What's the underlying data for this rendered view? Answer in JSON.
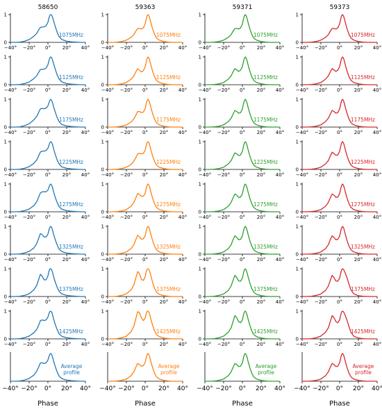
{
  "chart_data": {
    "type": "line",
    "columns": [
      {
        "title": "58650",
        "color": "#1f77b4"
      },
      {
        "title": "59363",
        "color": "#ff7f0e"
      },
      {
        "title": "59371",
        "color": "#2ca02c"
      },
      {
        "title": "59373",
        "color": "#d62728"
      }
    ],
    "frequency_labels": [
      "1075MHz",
      "1125MHz",
      "1175MHz",
      "1225MHz",
      "1275MHz",
      "1325MHz",
      "1375MHz",
      "1425MHz"
    ],
    "average_label": [
      "Average",
      "profile"
    ],
    "xlabel": "Phase",
    "xlim": [
      -40,
      40
    ],
    "xticks": [
      "−40°",
      "−20°",
      "0°",
      "20°",
      "40°"
    ],
    "xtick_values": [
      -40,
      -20,
      0,
      20,
      40
    ],
    "ylim": [
      0,
      1.05
    ],
    "yticks": [
      "0",
      "1"
    ],
    "ytick_values": [
      0,
      1
    ],
    "profile_model": {
      "x": [
        -40,
        -35,
        -30,
        -25,
        -20,
        -15,
        -12,
        -10,
        -8,
        -6,
        -4,
        -2,
        0,
        1,
        2,
        3,
        4,
        5,
        6,
        8,
        10,
        12,
        15,
        20,
        25,
        30,
        35,
        40
      ],
      "series": {
        "58650": [
          [
            0,
            0,
            0.01,
            0.04,
            0.1,
            0.22,
            0.32,
            0.44,
            0.54,
            0.55,
            0.56,
            0.6,
            0.72,
            0.86,
            0.97,
            1.0,
            0.98,
            0.9,
            0.78,
            0.55,
            0.35,
            0.2,
            0.1,
            0.04,
            0.02,
            0.01,
            0,
            0
          ],
          [
            0,
            0,
            0.01,
            0.04,
            0.1,
            0.22,
            0.32,
            0.44,
            0.55,
            0.56,
            0.56,
            0.6,
            0.72,
            0.85,
            0.96,
            1.0,
            0.97,
            0.88,
            0.76,
            0.54,
            0.34,
            0.2,
            0.1,
            0.04,
            0.02,
            0.01,
            0,
            0
          ],
          [
            0,
            0,
            0.01,
            0.05,
            0.12,
            0.26,
            0.38,
            0.52,
            0.66,
            0.67,
            0.66,
            0.68,
            0.76,
            0.86,
            0.96,
            1.0,
            0.96,
            0.86,
            0.74,
            0.52,
            0.33,
            0.19,
            0.09,
            0.04,
            0.02,
            0.01,
            0,
            0
          ],
          [
            0,
            0,
            0.01,
            0.04,
            0.1,
            0.22,
            0.34,
            0.48,
            0.63,
            0.66,
            0.66,
            0.68,
            0.76,
            0.86,
            0.96,
            1.0,
            0.97,
            0.88,
            0.75,
            0.52,
            0.33,
            0.19,
            0.09,
            0.04,
            0.02,
            0.01,
            0,
            0
          ],
          [
            0,
            0,
            0.01,
            0.04,
            0.1,
            0.22,
            0.36,
            0.52,
            0.68,
            0.72,
            0.72,
            0.72,
            0.78,
            0.88,
            0.97,
            1.0,
            0.96,
            0.86,
            0.73,
            0.5,
            0.32,
            0.18,
            0.09,
            0.04,
            0.02,
            0.01,
            0,
            0
          ],
          [
            0,
            0,
            0.01,
            0.04,
            0.1,
            0.22,
            0.38,
            0.56,
            0.74,
            0.7,
            0.62,
            0.62,
            0.72,
            0.86,
            0.96,
            1.0,
            0.96,
            0.86,
            0.72,
            0.5,
            0.32,
            0.18,
            0.09,
            0.04,
            0.02,
            0.01,
            0,
            0
          ],
          [
            0,
            0,
            0.01,
            0.04,
            0.1,
            0.24,
            0.4,
            0.6,
            0.8,
            0.72,
            0.6,
            0.6,
            0.74,
            0.9,
            0.99,
            1.0,
            0.96,
            0.86,
            0.72,
            0.5,
            0.32,
            0.18,
            0.09,
            0.04,
            0.02,
            0.01,
            0,
            0
          ],
          [
            0,
            0,
            0.01,
            0.04,
            0.1,
            0.22,
            0.34,
            0.48,
            0.66,
            0.68,
            0.66,
            0.68,
            0.78,
            0.9,
            0.98,
            1.0,
            0.96,
            0.86,
            0.72,
            0.5,
            0.32,
            0.18,
            0.09,
            0.04,
            0.02,
            0.01,
            0,
            0
          ],
          [
            0,
            0,
            0.01,
            0.04,
            0.1,
            0.22,
            0.36,
            0.5,
            0.66,
            0.66,
            0.64,
            0.66,
            0.76,
            0.88,
            0.97,
            1.0,
            0.96,
            0.86,
            0.73,
            0.51,
            0.32,
            0.18,
            0.09,
            0.04,
            0.02,
            0.01,
            0,
            0
          ]
        ],
        "59363": [
          [
            0,
            0,
            0.01,
            0.03,
            0.08,
            0.18,
            0.28,
            0.4,
            0.5,
            0.5,
            0.48,
            0.52,
            0.66,
            0.82,
            0.95,
            1.0,
            0.96,
            0.86,
            0.72,
            0.48,
            0.29,
            0.16,
            0.08,
            0.03,
            0.01,
            0,
            0,
            0
          ],
          [
            0,
            0,
            0.01,
            0.03,
            0.08,
            0.2,
            0.32,
            0.46,
            0.58,
            0.52,
            0.46,
            0.5,
            0.64,
            0.8,
            0.94,
            1.0,
            0.96,
            0.86,
            0.72,
            0.48,
            0.29,
            0.16,
            0.08,
            0.03,
            0.01,
            0,
            0,
            0
          ],
          [
            0,
            0,
            0.01,
            0.03,
            0.08,
            0.18,
            0.3,
            0.42,
            0.56,
            0.56,
            0.52,
            0.54,
            0.66,
            0.82,
            0.95,
            1.0,
            0.96,
            0.86,
            0.72,
            0.48,
            0.29,
            0.16,
            0.08,
            0.03,
            0.01,
            0,
            0,
            0
          ],
          [
            0,
            0,
            0.01,
            0.03,
            0.08,
            0.18,
            0.3,
            0.42,
            0.56,
            0.58,
            0.56,
            0.58,
            0.68,
            0.84,
            0.96,
            1.0,
            0.96,
            0.86,
            0.72,
            0.48,
            0.29,
            0.16,
            0.08,
            0.03,
            0.01,
            0,
            0,
            0
          ],
          [
            0,
            0,
            0.01,
            0.03,
            0.08,
            0.2,
            0.34,
            0.5,
            0.66,
            0.62,
            0.56,
            0.56,
            0.66,
            0.82,
            0.95,
            1.0,
            0.96,
            0.86,
            0.72,
            0.48,
            0.29,
            0.16,
            0.08,
            0.03,
            0.01,
            0,
            0,
            0
          ],
          [
            0,
            0,
            0.01,
            0.03,
            0.08,
            0.2,
            0.34,
            0.52,
            0.68,
            0.62,
            0.54,
            0.55,
            0.66,
            0.82,
            0.95,
            1.0,
            0.96,
            0.86,
            0.72,
            0.48,
            0.29,
            0.16,
            0.08,
            0.03,
            0.01,
            0,
            0,
            0
          ],
          [
            0,
            0,
            0.01,
            0.04,
            0.1,
            0.24,
            0.42,
            0.66,
            0.9,
            0.82,
            0.62,
            0.58,
            0.7,
            0.88,
            0.98,
            1.0,
            0.97,
            0.88,
            0.76,
            0.5,
            0.3,
            0.16,
            0.08,
            0.03,
            0.01,
            0,
            0,
            0
          ],
          [
            0,
            0,
            0.01,
            0.04,
            0.1,
            0.26,
            0.46,
            0.72,
            0.98,
            0.94,
            0.76,
            0.66,
            0.74,
            0.9,
            0.99,
            1.0,
            0.96,
            0.86,
            0.72,
            0.48,
            0.29,
            0.16,
            0.08,
            0.03,
            0.01,
            0,
            0,
            0
          ],
          [
            0,
            0,
            0.01,
            0.03,
            0.08,
            0.2,
            0.34,
            0.5,
            0.64,
            0.6,
            0.54,
            0.56,
            0.67,
            0.83,
            0.95,
            1.0,
            0.96,
            0.86,
            0.72,
            0.48,
            0.29,
            0.16,
            0.08,
            0.03,
            0.01,
            0,
            0,
            0
          ]
        ],
        "59371": [
          [
            0,
            0,
            0.01,
            0.03,
            0.08,
            0.18,
            0.28,
            0.4,
            0.5,
            0.5,
            0.48,
            0.52,
            0.66,
            0.82,
            0.95,
            1.0,
            0.96,
            0.86,
            0.72,
            0.48,
            0.29,
            0.16,
            0.08,
            0.03,
            0.01,
            0,
            0,
            0
          ],
          [
            0,
            0,
            0.01,
            0.03,
            0.08,
            0.2,
            0.32,
            0.46,
            0.58,
            0.53,
            0.48,
            0.52,
            0.65,
            0.81,
            0.94,
            1.0,
            0.96,
            0.86,
            0.72,
            0.48,
            0.29,
            0.16,
            0.08,
            0.03,
            0.01,
            0,
            0,
            0
          ],
          [
            0,
            0,
            0.01,
            0.03,
            0.08,
            0.2,
            0.32,
            0.46,
            0.6,
            0.56,
            0.5,
            0.52,
            0.65,
            0.81,
            0.94,
            1.0,
            0.96,
            0.86,
            0.72,
            0.48,
            0.29,
            0.16,
            0.08,
            0.03,
            0.01,
            0,
            0,
            0
          ],
          [
            0,
            0,
            0.01,
            0.03,
            0.08,
            0.2,
            0.32,
            0.46,
            0.6,
            0.56,
            0.5,
            0.52,
            0.65,
            0.81,
            0.94,
            1.0,
            0.96,
            0.86,
            0.72,
            0.48,
            0.29,
            0.16,
            0.08,
            0.03,
            0.01,
            0,
            0,
            0
          ],
          [
            0,
            0,
            0.01,
            0.03,
            0.08,
            0.2,
            0.34,
            0.5,
            0.64,
            0.6,
            0.52,
            0.53,
            0.65,
            0.81,
            0.94,
            1.0,
            0.96,
            0.86,
            0.72,
            0.48,
            0.29,
            0.16,
            0.08,
            0.03,
            0.01,
            0,
            0,
            0
          ],
          [
            0,
            0,
            0.01,
            0.03,
            0.08,
            0.2,
            0.34,
            0.52,
            0.66,
            0.6,
            0.52,
            0.53,
            0.65,
            0.81,
            0.94,
            1.0,
            0.96,
            0.86,
            0.72,
            0.48,
            0.29,
            0.16,
            0.08,
            0.03,
            0.01,
            0,
            0,
            0
          ],
          [
            0,
            0,
            0.01,
            0.04,
            0.09,
            0.22,
            0.38,
            0.58,
            0.76,
            0.68,
            0.56,
            0.55,
            0.66,
            0.82,
            0.95,
            1.0,
            0.96,
            0.86,
            0.72,
            0.48,
            0.29,
            0.16,
            0.08,
            0.03,
            0.01,
            0,
            0,
            0
          ],
          [
            0,
            0,
            0.01,
            0.04,
            0.1,
            0.24,
            0.4,
            0.62,
            0.84,
            0.76,
            0.62,
            0.58,
            0.68,
            0.84,
            0.96,
            1.0,
            0.96,
            0.86,
            0.72,
            0.48,
            0.29,
            0.16,
            0.08,
            0.03,
            0.01,
            0,
            0,
            0
          ],
          [
            0,
            0,
            0.01,
            0.03,
            0.08,
            0.2,
            0.34,
            0.5,
            0.64,
            0.6,
            0.53,
            0.54,
            0.66,
            0.82,
            0.95,
            1.0,
            0.96,
            0.86,
            0.72,
            0.48,
            0.29,
            0.16,
            0.08,
            0.03,
            0.01,
            0,
            0,
            0
          ]
        ],
        "59373": [
          [
            0,
            0,
            0.01,
            0.03,
            0.08,
            0.18,
            0.28,
            0.4,
            0.5,
            0.5,
            0.48,
            0.52,
            0.66,
            0.82,
            0.95,
            1.0,
            0.96,
            0.86,
            0.72,
            0.48,
            0.29,
            0.16,
            0.08,
            0.03,
            0.01,
            0,
            0,
            0
          ],
          [
            0,
            0,
            0.01,
            0.03,
            0.08,
            0.2,
            0.32,
            0.46,
            0.58,
            0.53,
            0.48,
            0.52,
            0.65,
            0.81,
            0.94,
            1.0,
            0.96,
            0.86,
            0.72,
            0.48,
            0.29,
            0.16,
            0.08,
            0.03,
            0.01,
            0,
            0,
            0
          ],
          [
            0,
            0,
            0.01,
            0.03,
            0.08,
            0.2,
            0.32,
            0.46,
            0.6,
            0.56,
            0.5,
            0.52,
            0.65,
            0.81,
            0.94,
            1.0,
            0.96,
            0.86,
            0.72,
            0.48,
            0.29,
            0.16,
            0.08,
            0.03,
            0.01,
            0,
            0,
            0
          ],
          [
            0,
            0,
            0.01,
            0.03,
            0.08,
            0.2,
            0.32,
            0.48,
            0.62,
            0.57,
            0.51,
            0.52,
            0.65,
            0.81,
            0.94,
            1.0,
            0.96,
            0.86,
            0.72,
            0.48,
            0.29,
            0.16,
            0.08,
            0.03,
            0.01,
            0,
            0,
            0
          ],
          [
            0,
            0,
            0.01,
            0.03,
            0.08,
            0.2,
            0.34,
            0.5,
            0.64,
            0.6,
            0.52,
            0.53,
            0.65,
            0.81,
            0.94,
            1.0,
            0.96,
            0.86,
            0.72,
            0.48,
            0.29,
            0.16,
            0.08,
            0.03,
            0.01,
            0,
            0,
            0
          ],
          [
            0,
            0,
            0.01,
            0.03,
            0.08,
            0.2,
            0.34,
            0.52,
            0.66,
            0.6,
            0.52,
            0.53,
            0.65,
            0.81,
            0.94,
            1.0,
            0.96,
            0.86,
            0.72,
            0.48,
            0.29,
            0.16,
            0.08,
            0.03,
            0.01,
            0,
            0,
            0
          ],
          [
            0,
            0,
            0.01,
            0.04,
            0.09,
            0.22,
            0.38,
            0.58,
            0.76,
            0.68,
            0.56,
            0.55,
            0.66,
            0.82,
            0.95,
            1.0,
            0.98,
            0.92,
            0.84,
            0.66,
            0.44,
            0.24,
            0.1,
            0.03,
            0.01,
            0,
            0,
            0
          ],
          [
            0,
            0,
            0.01,
            0.04,
            0.1,
            0.24,
            0.4,
            0.62,
            0.84,
            0.76,
            0.62,
            0.58,
            0.68,
            0.84,
            0.96,
            1.0,
            0.98,
            0.92,
            0.84,
            0.66,
            0.44,
            0.24,
            0.1,
            0.03,
            0.01,
            0,
            0,
            0
          ],
          [
            0,
            0,
            0.01,
            0.03,
            0.08,
            0.2,
            0.34,
            0.5,
            0.64,
            0.6,
            0.53,
            0.54,
            0.66,
            0.82,
            0.95,
            1.0,
            0.96,
            0.86,
            0.72,
            0.48,
            0.29,
            0.16,
            0.08,
            0.03,
            0.01,
            0,
            0,
            0
          ]
        ]
      }
    }
  }
}
